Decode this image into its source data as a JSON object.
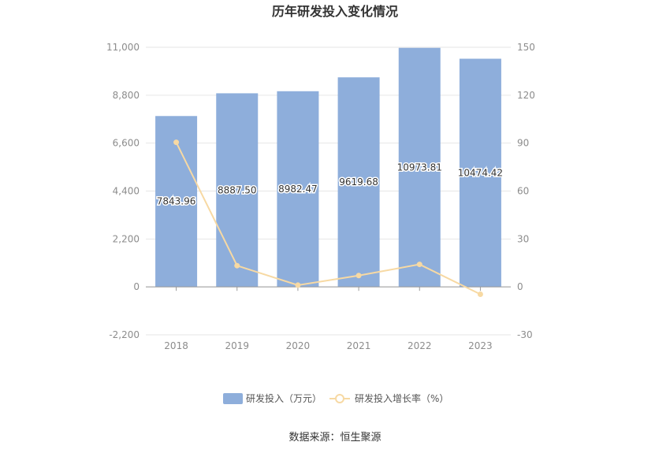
{
  "chart_data": {
    "type": "bar",
    "title": "历年研发投入变化情况",
    "categories": [
      "2018",
      "2019",
      "2020",
      "2021",
      "2022",
      "2023"
    ],
    "series": [
      {
        "name": "研发投入（万元）",
        "type": "bar",
        "axis": "left",
        "values": [
          7843.96,
          8887.5,
          8982.47,
          9619.68,
          10973.81,
          10474.42
        ],
        "labels": [
          "7843.96",
          "8887.50",
          "8982.47",
          "9619.68",
          "10973.81",
          "10474.42"
        ],
        "color": "#8eaedb"
      },
      {
        "name": "研发投入增长率（%）",
        "type": "line",
        "axis": "right",
        "values": [
          90.5,
          13.3,
          1.1,
          7.1,
          14.1,
          -4.6
        ],
        "color": "#f7d9a3"
      }
    ],
    "y_left": {
      "lim": [
        -2200,
        11000
      ],
      "ticks": [
        -2200,
        0,
        2200,
        4400,
        6600,
        8800,
        11000
      ],
      "tick_labels": [
        "-2,200",
        "0",
        "2,200",
        "4,400",
        "6,600",
        "8,800",
        "11,000"
      ]
    },
    "y_right": {
      "lim": [
        -30,
        150
      ],
      "ticks": [
        -30,
        0,
        30,
        60,
        90,
        120,
        150
      ],
      "tick_labels": [
        "-30",
        "0",
        "30",
        "60",
        "90",
        "120",
        "150"
      ]
    },
    "grid": true,
    "legend": "bottom-center"
  },
  "source": "数据来源：恒生聚源"
}
